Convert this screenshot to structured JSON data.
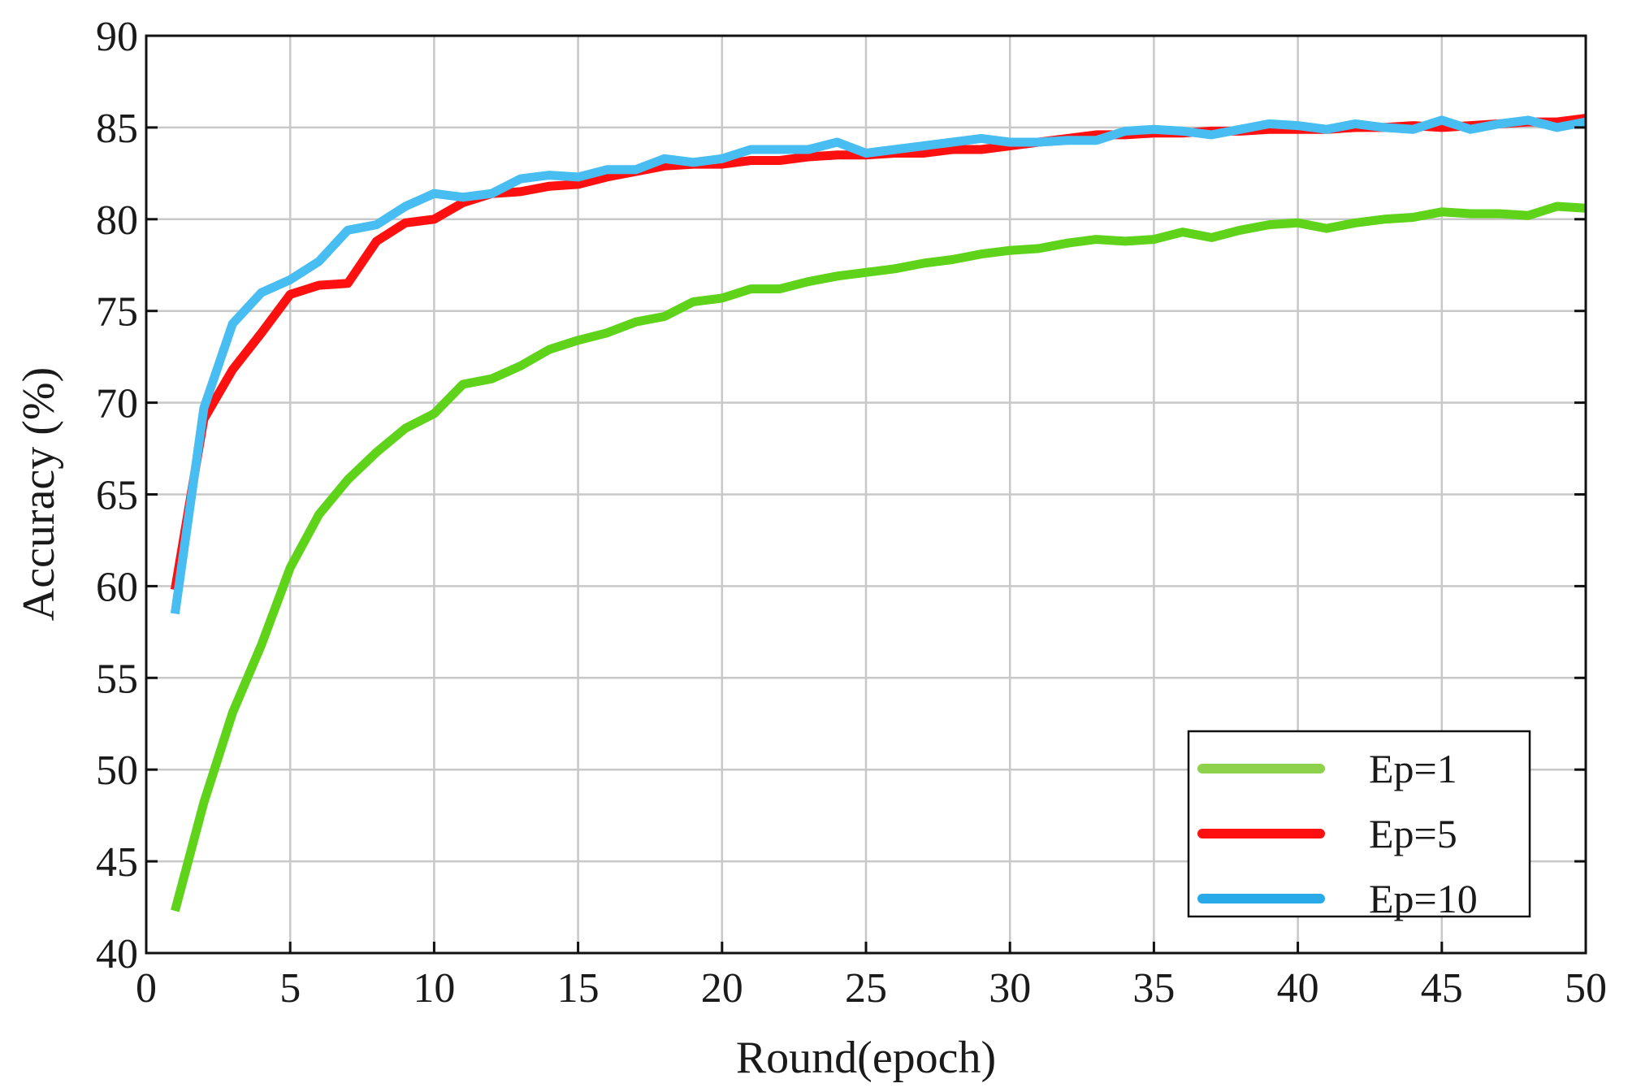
{
  "chart_data": {
    "type": "line",
    "title": "",
    "xlabel": "Round(epoch)",
    "ylabel": "Accuracy (%)",
    "xlim": [
      0,
      50
    ],
    "ylim": [
      40,
      90
    ],
    "xticks": [
      0,
      5,
      10,
      15,
      20,
      25,
      30,
      35,
      40,
      45,
      50
    ],
    "yticks": [
      40,
      45,
      50,
      55,
      60,
      65,
      70,
      75,
      80,
      85,
      90
    ],
    "grid": true,
    "legend_position": "bottom-right",
    "x": [
      1,
      2,
      3,
      4,
      5,
      6,
      7,
      8,
      9,
      10,
      11,
      12,
      13,
      14,
      15,
      16,
      17,
      18,
      19,
      20,
      21,
      22,
      23,
      24,
      25,
      26,
      27,
      28,
      29,
      30,
      31,
      32,
      33,
      34,
      35,
      36,
      37,
      38,
      39,
      40,
      41,
      42,
      43,
      44,
      45,
      46,
      47,
      48,
      49,
      50
    ],
    "series": [
      {
        "name": "Ep=1",
        "color": "#5fd31a",
        "legend_color": "#8ed14a",
        "values": [
          42.3,
          48.2,
          53.1,
          56.8,
          61.0,
          63.9,
          65.8,
          67.3,
          68.6,
          69.4,
          71.0,
          71.3,
          72.0,
          72.9,
          73.4,
          73.8,
          74.4,
          74.7,
          75.5,
          75.7,
          76.2,
          76.2,
          76.6,
          76.9,
          77.1,
          77.3,
          77.6,
          77.8,
          78.1,
          78.3,
          78.4,
          78.7,
          78.9,
          78.8,
          78.9,
          79.3,
          79.0,
          79.4,
          79.7,
          79.8,
          79.5,
          79.8,
          80.0,
          80.1,
          80.4,
          80.3,
          80.3,
          80.2,
          80.7,
          80.6
        ]
      },
      {
        "name": "Ep=5",
        "color": "#ff1010",
        "legend_color": "#ff1010",
        "values": [
          59.8,
          69.1,
          71.8,
          73.8,
          75.9,
          76.4,
          76.5,
          78.8,
          79.8,
          80.0,
          80.9,
          81.4,
          81.5,
          81.8,
          81.9,
          82.3,
          82.6,
          82.9,
          83.0,
          83.0,
          83.2,
          83.2,
          83.4,
          83.5,
          83.5,
          83.6,
          83.6,
          83.8,
          83.8,
          84.0,
          84.2,
          84.4,
          84.6,
          84.6,
          84.7,
          84.7,
          84.8,
          84.8,
          84.9,
          84.9,
          84.9,
          85.0,
          85.0,
          85.1,
          85.0,
          85.1,
          85.2,
          85.3,
          85.3,
          85.5
        ]
      },
      {
        "name": "Ep=10",
        "color": "#48bdf2",
        "legend_color": "#29aae8",
        "values": [
          58.5,
          69.7,
          74.3,
          76.0,
          76.7,
          77.7,
          79.4,
          79.7,
          80.7,
          81.4,
          81.2,
          81.4,
          82.2,
          82.4,
          82.3,
          82.7,
          82.7,
          83.3,
          83.1,
          83.3,
          83.8,
          83.8,
          83.8,
          84.2,
          83.6,
          83.8,
          84.0,
          84.2,
          84.4,
          84.2,
          84.2,
          84.3,
          84.3,
          84.8,
          84.9,
          84.8,
          84.6,
          84.9,
          85.2,
          85.1,
          84.9,
          85.2,
          85.0,
          84.9,
          85.4,
          84.9,
          85.2,
          85.4,
          85.0,
          85.3
        ]
      }
    ]
  }
}
